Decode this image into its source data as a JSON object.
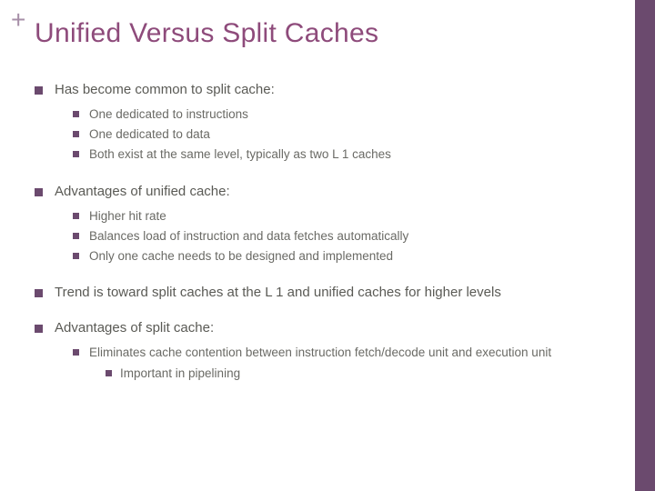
{
  "decor": {
    "plus": "+"
  },
  "title": "Unified Versus Split Caches",
  "colors": {
    "title_color": "#8e4b7b",
    "bullet_color": "#6b4a6e",
    "sidebar_color": "#6b4a6e",
    "plus_color": "#a78fa8",
    "body_text_color": "#5a5a55",
    "background": "#ffffff"
  },
  "typography": {
    "title_fontsize": 30,
    "lvl1_fontsize": 15,
    "lvl2_fontsize": 13.5,
    "font_family": "Arial"
  },
  "bullets": [
    {
      "text": "Has become common to split cache:",
      "children": [
        {
          "text": "One dedicated to instructions"
        },
        {
          "text": "One dedicated to data"
        },
        {
          "text": "Both exist at the same level, typically as two L 1 caches"
        }
      ]
    },
    {
      "text": "Advantages of unified cache:",
      "children": [
        {
          "text": "Higher hit rate"
        },
        {
          "text": "Balances load of instruction and data fetches automatically"
        },
        {
          "text": "Only one cache needs to be designed and implemented"
        }
      ]
    },
    {
      "text": "Trend is toward split caches at the L 1 and unified caches for higher levels"
    },
    {
      "text": "Advantages of split cache:",
      "children": [
        {
          "text": "Eliminates cache contention between instruction fetch/decode unit and execution unit",
          "children": [
            {
              "text": "Important in pipelining"
            }
          ]
        }
      ]
    }
  ]
}
